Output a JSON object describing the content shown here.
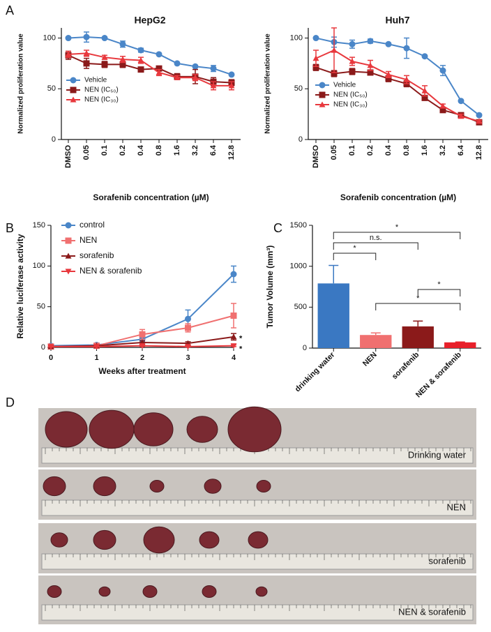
{
  "panel_labels": [
    "A",
    "B",
    "C",
    "D"
  ],
  "chart_data": [
    {
      "type": "line",
      "title": "HepG2",
      "y_label": "Normalized proliferation value",
      "x_label": "Sorafenib concentration (µM)",
      "categories": [
        "DMSO",
        "0.05",
        "0.1",
        "0.2",
        "0.4",
        "0.8",
        "1.6",
        "3.2",
        "6.4",
        "12.8"
      ],
      "ylim": [
        0,
        110
      ],
      "yticks": [
        0,
        50,
        100
      ],
      "series": [
        {
          "name": "Vehicle",
          "color": "#4a86c8",
          "marker": "circle",
          "values": [
            100,
            101,
            100,
            94,
            88,
            84,
            75,
            72,
            70,
            64
          ],
          "errors": [
            1,
            5,
            1,
            3,
            2,
            1,
            1,
            1,
            3,
            1
          ]
        },
        {
          "name": "NEN (IC₅₀)",
          "color": "#8b1a1a",
          "marker": "square",
          "values": [
            83,
            75,
            74,
            74,
            69,
            70,
            62,
            62,
            57,
            56
          ],
          "errors": [
            4,
            5,
            3,
            3,
            2,
            2,
            3,
            7,
            4,
            3
          ]
        },
        {
          "name": "NEN (IC₃₀)",
          "color": "#e8383d",
          "marker": "triangle",
          "values": [
            84,
            85,
            81,
            79,
            78,
            66,
            61,
            61,
            53,
            53
          ],
          "errors": [
            3,
            3,
            2,
            3,
            3,
            3,
            2,
            3,
            4,
            4
          ]
        }
      ]
    },
    {
      "type": "line",
      "title": "Huh7",
      "y_label": "Normalized proliferation value",
      "x_label": "Sorafenib concentration (µM)",
      "categories": [
        "DMSO",
        "0.05",
        "0.1",
        "0.2",
        "0.4",
        "0.8",
        "1.6",
        "3.2",
        "6.4",
        "12.8"
      ],
      "ylim": [
        0,
        110
      ],
      "yticks": [
        0,
        50,
        100
      ],
      "series": [
        {
          "name": "Vehicle",
          "color": "#4a86c8",
          "marker": "circle",
          "values": [
            100,
            96,
            94,
            97,
            94,
            90,
            82,
            68,
            38,
            24
          ],
          "errors": [
            1,
            5,
            4,
            2,
            1,
            10,
            1,
            5,
            1,
            1
          ]
        },
        {
          "name": "NEN (IC₅₀)",
          "color": "#8b1a1a",
          "marker": "square",
          "values": [
            71,
            65,
            67,
            66,
            60,
            55,
            41,
            29,
            24,
            17
          ],
          "errors": [
            3,
            3,
            3,
            2,
            3,
            3,
            2,
            2,
            2,
            1
          ]
        },
        {
          "name": "NEN (IC₃₀)",
          "color": "#e8383d",
          "marker": "triangle",
          "values": [
            80,
            88,
            77,
            73,
            64,
            59,
            48,
            33,
            23,
            18
          ],
          "errors": [
            8,
            22,
            4,
            5,
            3,
            4,
            5,
            2,
            2,
            1
          ]
        }
      ]
    },
    {
      "type": "line",
      "y_label": "Relative luciferase activity",
      "x_label": "Weeks after treatment",
      "x": [
        0,
        1,
        2,
        3,
        4
      ],
      "xlim": [
        0,
        4
      ],
      "xticks": [
        0,
        1,
        2,
        3,
        4
      ],
      "ylim": [
        0,
        150
      ],
      "yticks": [
        0,
        50,
        100,
        150
      ],
      "annotations": [
        "*",
        "*"
      ],
      "series": [
        {
          "name": "control",
          "color": "#4a86c8",
          "marker": "circle",
          "values": [
            2,
            3,
            10,
            35,
            90
          ],
          "errors": [
            1,
            1,
            3,
            11,
            10
          ]
        },
        {
          "name": "NEN",
          "color": "#f07070",
          "marker": "square",
          "values": [
            1,
            2,
            16,
            24,
            39
          ],
          "errors": [
            1,
            1,
            6,
            5,
            15
          ]
        },
        {
          "name": "sorafenib",
          "color": "#8b1a1a",
          "marker": "triangle",
          "values": [
            1,
            2,
            6,
            5,
            13
          ],
          "errors": [
            1,
            1,
            2,
            2,
            4
          ]
        },
        {
          "name": "NEN & sorafenib",
          "color": "#e8383d",
          "marker": "triangle-down",
          "values": [
            1,
            1,
            2,
            1,
            2
          ],
          "errors": [
            0.5,
            0.5,
            1,
            0.5,
            1
          ]
        }
      ]
    },
    {
      "type": "bar",
      "y_label": "Tumor Volume (mm³)",
      "categories": [
        "drinking water",
        "NEN",
        "sorafenib",
        "NEN & sorafenib"
      ],
      "values": [
        790,
        160,
        265,
        70
      ],
      "errors": [
        220,
        25,
        65,
        5
      ],
      "colors": [
        "#3a78c2",
        "#f07070",
        "#8b1a1a",
        "#e8202a"
      ],
      "ylim": [
        0,
        1500
      ],
      "yticks": [
        0,
        500,
        1000,
        {
          "value": 1500,
          "label": "1500"
        }
      ],
      "annotations": [
        "*",
        "n.s.",
        "*",
        "*",
        "*"
      ]
    }
  ],
  "photo_panel": {
    "labels": [
      "Drinking water",
      "NEN",
      "sorafenib",
      "NEN & sorafenib"
    ]
  }
}
